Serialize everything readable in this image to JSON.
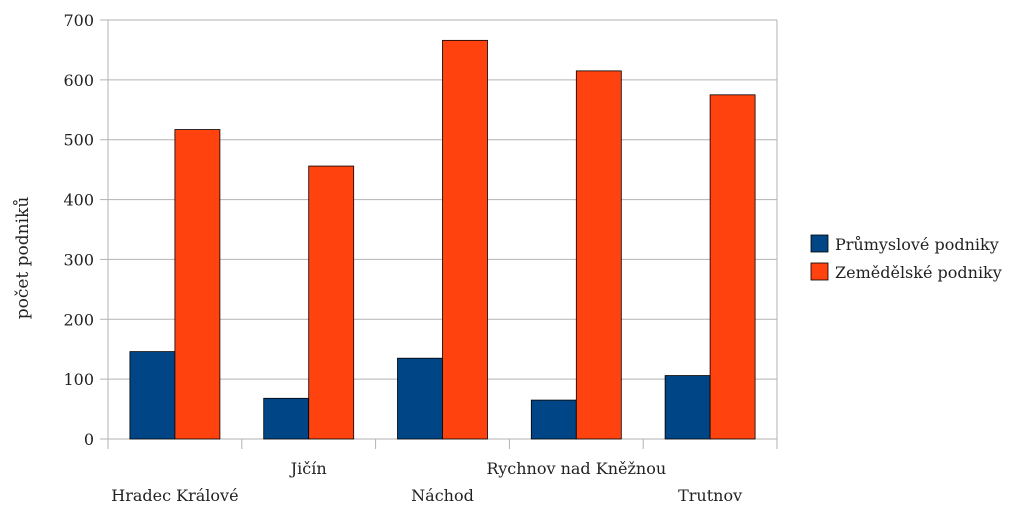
{
  "chart_data": {
    "type": "bar",
    "title": "",
    "xlabel": "",
    "ylabel": "počet podniků",
    "categories": [
      "Hradec Králové",
      "Jičín",
      "Náchod",
      "Rychnov nad Kněžnou",
      "Trutnov"
    ],
    "series": [
      {
        "name": "Průmyslové podniky",
        "color": "#004586",
        "values": [
          146,
          68,
          135,
          65,
          106
        ]
      },
      {
        "name": "Zemědělské podniky",
        "color": "#ff420e",
        "values": [
          517,
          456,
          666,
          615,
          575
        ]
      }
    ],
    "ylim": [
      0,
      700
    ],
    "yticks": [
      "0",
      "100",
      "200",
      "300",
      "400",
      "500",
      "600",
      "700"
    ],
    "grid": true,
    "legend": "right"
  }
}
